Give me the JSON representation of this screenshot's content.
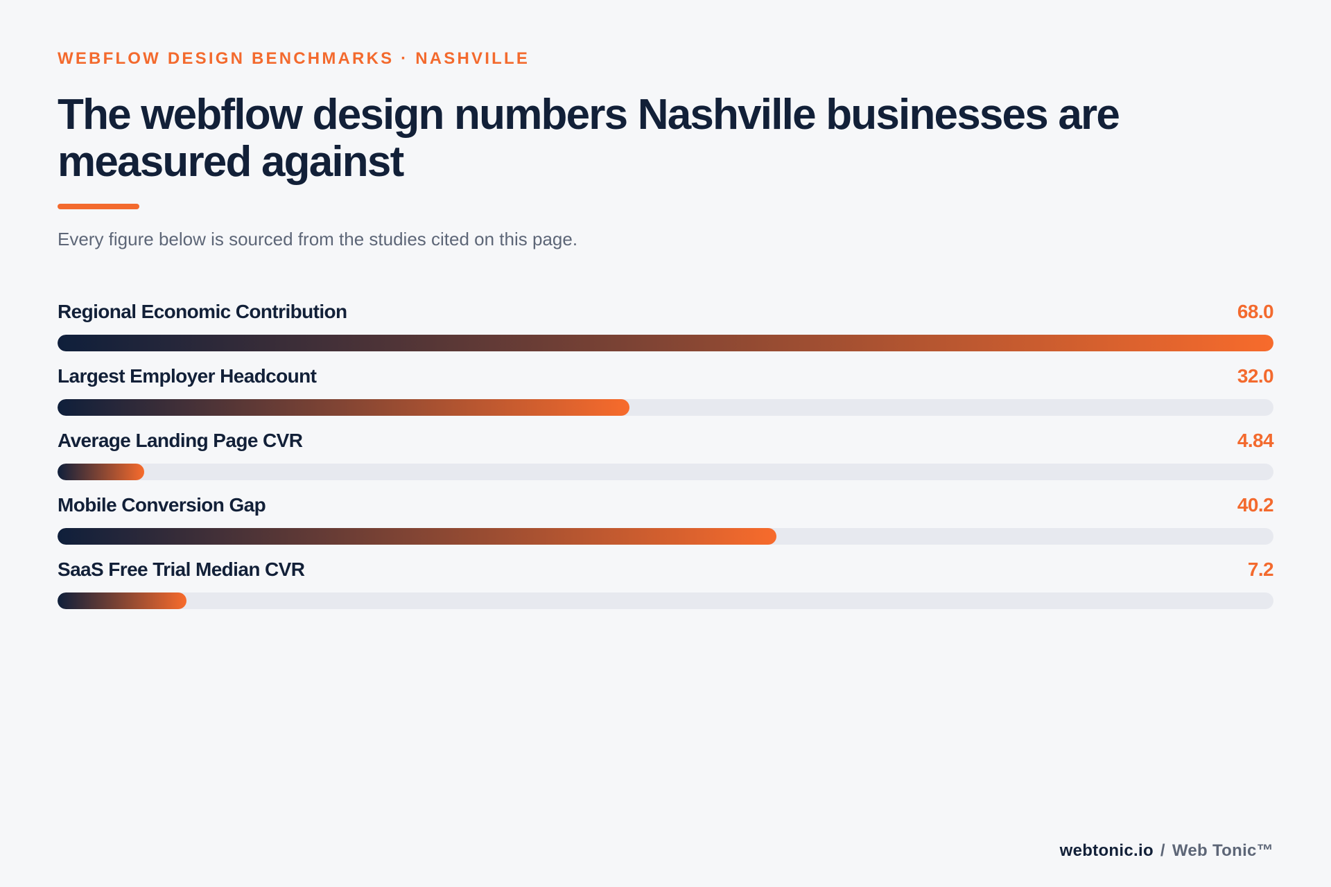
{
  "header": {
    "eyebrow": "WEBFLOW DESIGN BENCHMARKS · NASHVILLE",
    "title": "The webflow design numbers Nashville businesses are measured against",
    "subtitle": "Every figure below is sourced from the studies cited on this page."
  },
  "chart_data": {
    "type": "bar",
    "orientation": "horizontal",
    "title": "The webflow design numbers Nashville businesses are measured against",
    "xlabel": "",
    "ylabel": "",
    "grid": false,
    "categories": [
      "Regional Economic Contribution",
      "Largest Employer Headcount",
      "Average Landing Page CVR",
      "Mobile Conversion Gap",
      "SaaS Free Trial Median CVR"
    ],
    "values": [
      68.0,
      32.0,
      4.84,
      40.2,
      7.2
    ],
    "value_labels": [
      "68.0",
      "32.0",
      "4.84",
      "40.2",
      "7.2"
    ],
    "xlim": [
      0,
      68.0
    ]
  },
  "footer": {
    "site": "webtonic.io",
    "separator": "/",
    "brand": "Web Tonic™"
  },
  "colors": {
    "accent": "#f36a2e",
    "navy": "#122038",
    "gradient_start": "#0f1f3b",
    "gradient_end": "#f76b2c",
    "track": "#e7e9ef",
    "background": "#f6f7f9"
  }
}
